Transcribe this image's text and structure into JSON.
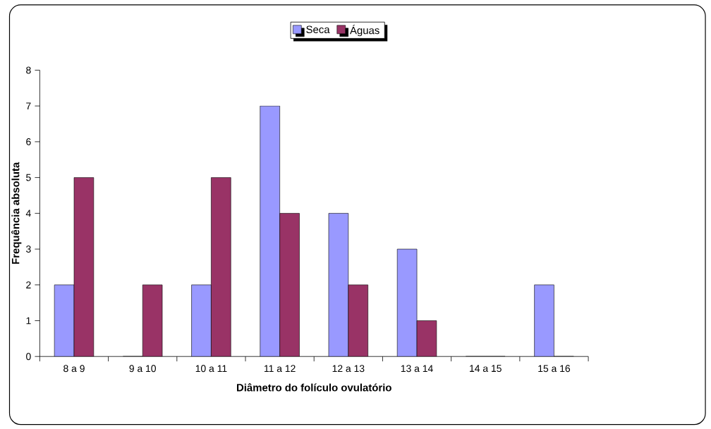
{
  "chart_data": {
    "type": "bar",
    "xlabel": "Diâmetro do folículo ovulatório",
    "ylabel": "Frequência absoluta",
    "categories": [
      "8 a 9",
      "9 a 10",
      "10 a 11",
      "11 a 12",
      "12 a 13",
      "13 a 14",
      "14 a 15",
      "15 a 16"
    ],
    "series": [
      {
        "name": "Seca",
        "color": "#9999ff",
        "values": [
          2,
          0,
          2,
          7,
          4,
          3,
          0,
          2
        ]
      },
      {
        "name": "Águas",
        "color": "#993366",
        "values": [
          5,
          2,
          5,
          4,
          2,
          1,
          0,
          0
        ]
      }
    ],
    "ylim": [
      0,
      8
    ],
    "yticks": [
      0,
      1,
      2,
      3,
      4,
      5,
      6,
      7,
      8
    ],
    "grid": false,
    "legend": "top"
  }
}
